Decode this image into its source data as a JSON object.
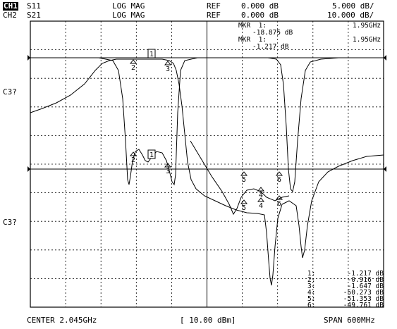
{
  "header": {
    "ch1": {
      "label": "CH1",
      "param": "S11",
      "format": "LOG MAG",
      "ref_label": "REF",
      "ref_value": "0.000 dB",
      "scale": "5.000 dB/"
    },
    "ch2": {
      "label": "CH2",
      "param": "S21",
      "format": "LOG MAG",
      "ref_label": "REF",
      "ref_value": "0.000 dB",
      "scale": "10.000 dB/"
    }
  },
  "marker_readouts": [
    {
      "label": "MKR  1:",
      "value": "-18.875 dB",
      "freq": "1.95GHz"
    },
    {
      "label": "MKR  1:",
      "value": "-1.217 dB",
      "freq": "1.95GHz"
    }
  ],
  "side_labels": {
    "upper": "C3?",
    "lower": "C3?"
  },
  "marker_table": [
    {
      "num": "1:",
      "value": "-1.217 dB"
    },
    {
      "num": "2:",
      "value": "-0.916 dB"
    },
    {
      "num": "3:",
      "value": "-1.647 dB"
    },
    {
      "num": "4:",
      "value": "-50.273 dB"
    },
    {
      "num": "5:",
      "value": "-51.353 dB"
    },
    {
      "num": "6:",
      "value": "-49.761 dB"
    }
  ],
  "trace_markers": {
    "s21": [
      "2",
      "1",
      "3"
    ],
    "s11": [
      "2",
      "1",
      "3",
      "5",
      "4",
      "6",
      "5",
      "4",
      "6"
    ]
  },
  "footer": {
    "center": "CENTER 2.045GHz",
    "power": "[ 10.00 dBm]",
    "span": "SPAN 600MHz"
  }
}
